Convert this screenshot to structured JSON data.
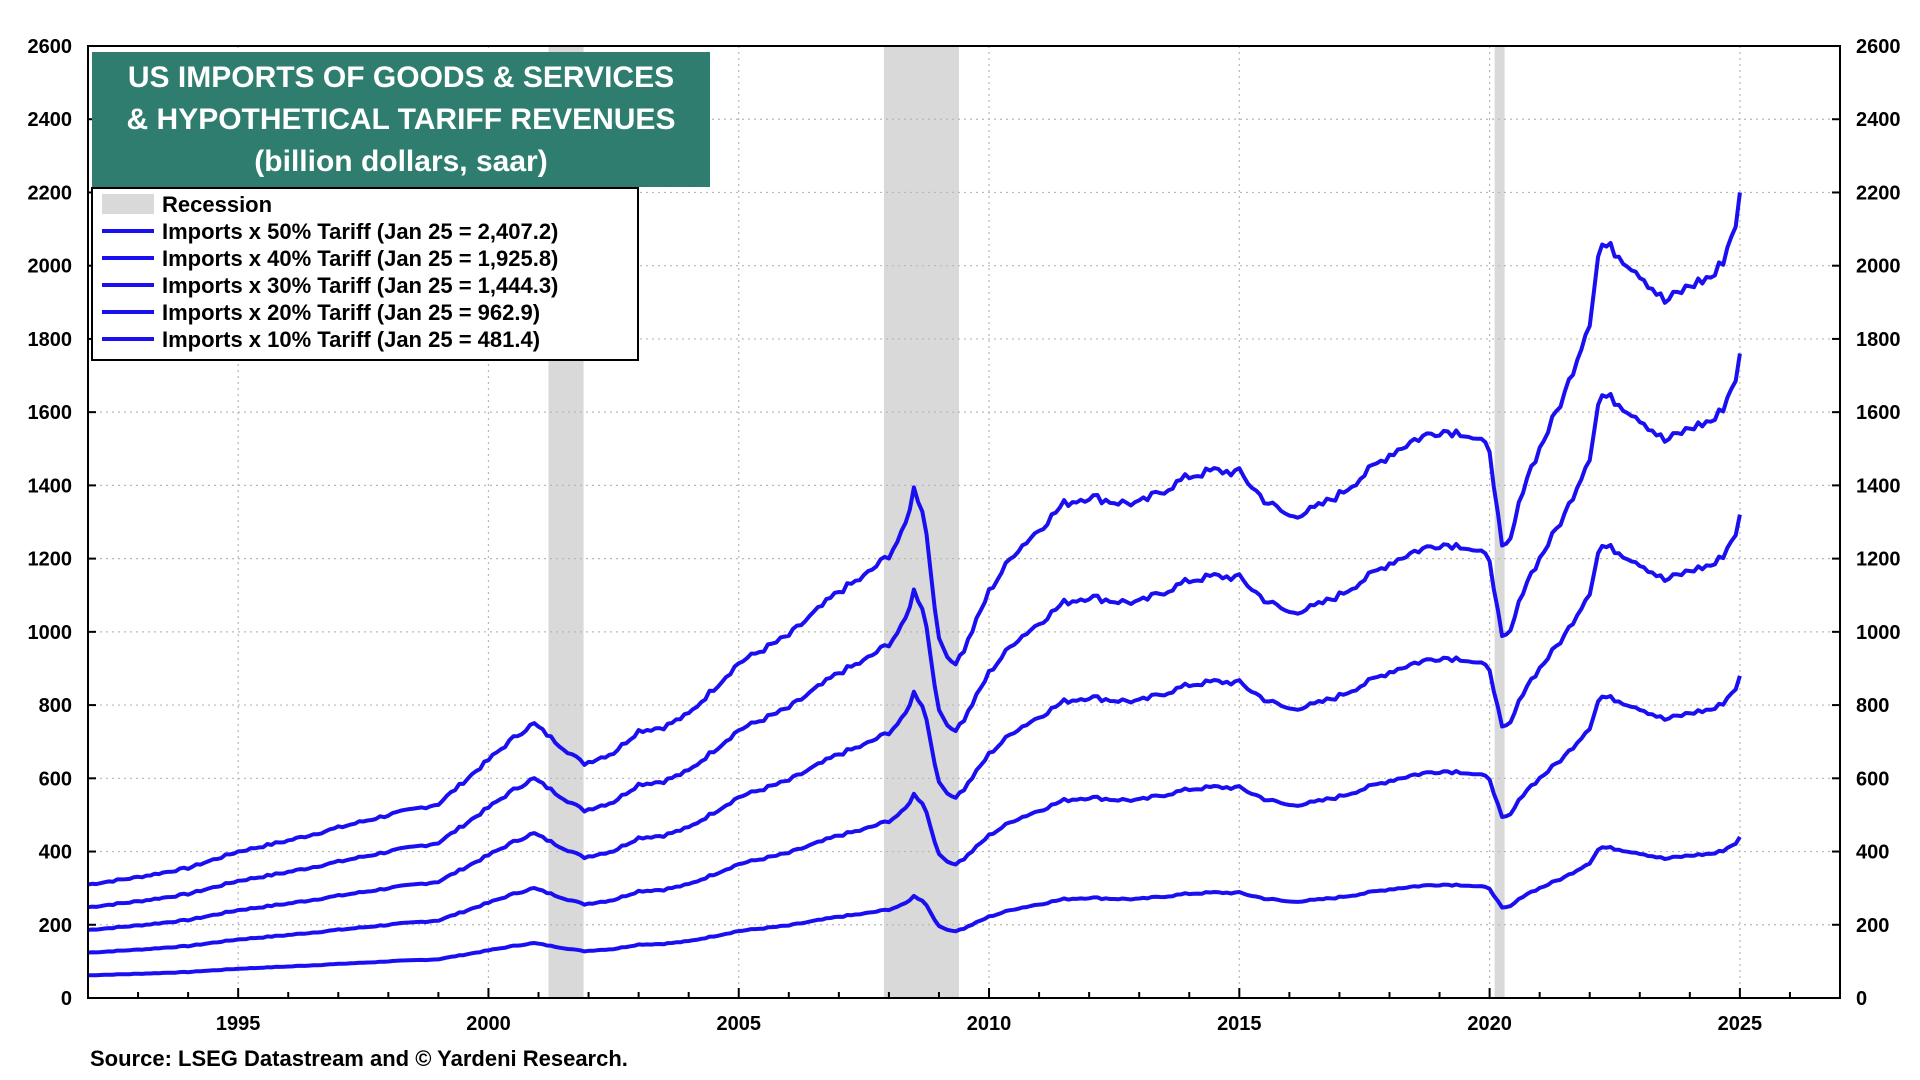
{
  "colors": {
    "series": "#1a0ff0",
    "recession": "#d9d9d9",
    "title_bg": "#2e7d6e",
    "grid": "#b8b8b8"
  },
  "chart_data": {
    "type": "line",
    "title_lines": [
      "US IMPORTS OF GOODS & SERVICES",
      "& HYPOTHETICAL TARIFF REVENUES",
      "(billion dollars, saar)"
    ],
    "source": "Source: LSEG Datastream and © Yardeni Research.",
    "xlim": [
      1992.0,
      2027.0
    ],
    "ylim": [
      0,
      2600
    ],
    "x_ticks": [
      1995,
      2000,
      2005,
      2010,
      2015,
      2020,
      2025
    ],
    "x_tick_labels": [
      "1995",
      "2000",
      "2005",
      "2010",
      "2015",
      "2020",
      "2025"
    ],
    "y_ticks": [
      0,
      200,
      400,
      600,
      800,
      1000,
      1200,
      1400,
      1600,
      1800,
      2000,
      2200,
      2400,
      2600
    ],
    "y_tick_labels": [
      "0",
      "200",
      "400",
      "600",
      "800",
      "1000",
      "1200",
      "1400",
      "1600",
      "1800",
      "2000",
      "2200",
      "2400",
      "2600"
    ],
    "recessions": [
      {
        "start": 2001.2,
        "end": 2001.9
      },
      {
        "start": 2007.9,
        "end": 2009.4
      },
      {
        "start": 2020.1,
        "end": 2020.3
      }
    ],
    "legend": [
      {
        "label": "Recession",
        "kind": "recession"
      },
      {
        "label": "Imports x 50% Tariff (Jan 25 = 2,407.2)",
        "kind": "line"
      },
      {
        "label": "Imports x 40% Tariff (Jan 25 = 1,925.8)",
        "kind": "line"
      },
      {
        "label": "Imports x 30% Tariff (Jan 25 = 1,444.3)",
        "kind": "line"
      },
      {
        "label": "Imports x 20% Tariff (Jan 25 = 962.9)",
        "kind": "line"
      },
      {
        "label": "Imports x 10% Tariff (Jan 25 = 481.4)",
        "kind": "line"
      }
    ],
    "series": [
      {
        "name": "Imports x 50% Tariff",
        "multiplier": 5
      },
      {
        "name": "Imports x 40% Tariff",
        "multiplier": 4
      },
      {
        "name": "Imports x 30% Tariff",
        "multiplier": 3
      },
      {
        "name": "Imports x 20% Tariff",
        "multiplier": 2
      },
      {
        "name": "Imports x 10% Tariff",
        "multiplier": 1
      }
    ],
    "base_10pct": {
      "x": [
        1992.0,
        1993.0,
        1994.0,
        1995.0,
        1996.0,
        1997.0,
        1998.0,
        1999.0,
        2000.0,
        2000.5,
        2000.9,
        2001.3,
        2001.9,
        2002.5,
        2003.0,
        2003.5,
        2004.0,
        2005.0,
        2006.0,
        2007.0,
        2007.5,
        2008.0,
        2008.3,
        2008.5,
        2008.7,
        2009.0,
        2009.3,
        2009.5,
        2010.0,
        2010.5,
        2011.0,
        2011.5,
        2012.0,
        2012.5,
        2013.0,
        2014.0,
        2014.5,
        2015.0,
        2015.5,
        2016.0,
        2016.5,
        2017.0,
        2018.0,
        2018.5,
        2019.0,
        2019.5,
        2020.0,
        2020.25,
        2020.4,
        2020.7,
        2021.0,
        2021.5,
        2022.0,
        2022.2,
        2022.5,
        2023.0,
        2023.5,
        2024.0,
        2024.5,
        2024.7,
        2024.8,
        2024.9,
        2025.0,
        2025.08
      ],
      "values": [
        62,
        66,
        71,
        80,
        86,
        93,
        100,
        106,
        130,
        142,
        150,
        141,
        128,
        134,
        146,
        148,
        155,
        183,
        198,
        222,
        230,
        242,
        255,
        278,
        265,
        195,
        182,
        190,
        222,
        243,
        256,
        270,
        274,
        271,
        270,
        285,
        288,
        287,
        272,
        263,
        267,
        275,
        297,
        305,
        310,
        309,
        300,
        245,
        248,
        282,
        300,
        330,
        370,
        412,
        408,
        396,
        380,
        389,
        395,
        405,
        415,
        420,
        440,
        481.4
      ]
    }
  }
}
